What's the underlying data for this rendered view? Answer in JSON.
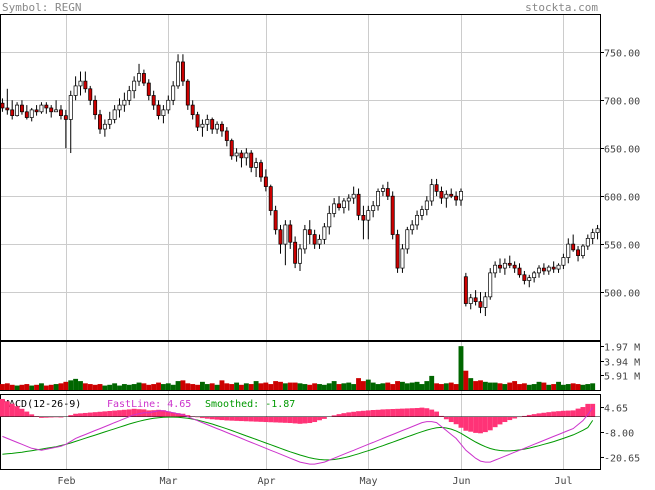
{
  "header": {
    "symbol_label": "Symbol: REGN",
    "site_label": "stockta.com"
  },
  "macd": {
    "title": "MACD(12-26-9)",
    "fast_label": "FastLine: 4.65",
    "smoothed_label": "Smoothed: -1.87",
    "y_ticks": [
      "4.65",
      "-8.00",
      "-20.65"
    ]
  },
  "volume": {
    "y_ticks": [
      "5.91 M",
      "3.94 M",
      "1.97 M"
    ]
  },
  "colors": {
    "up": "#ffffff",
    "down": "#cc0000",
    "volume_up": "#006600",
    "volume_down": "#cc0000",
    "histogram": "#ff3377",
    "fast_line": "#cc33cc",
    "smoothed_line": "#009900",
    "grid": "#cccccc",
    "header_text": "#888888"
  },
  "chart_data": [
    {
      "type": "candlestick",
      "title": "",
      "xlabel": "",
      "ylabel": "",
      "ylim": [
        450,
        790
      ],
      "y_ticks": [
        500,
        550,
        600,
        650,
        700,
        750
      ],
      "x_ticks": [
        "Feb",
        "Mar",
        "Apr",
        "May",
        "Jun",
        "Jul"
      ],
      "grid": true,
      "ohlc": [
        [
          697,
          702,
          688,
          692
        ],
        [
          692,
          712,
          685,
          690
        ],
        [
          690,
          700,
          680,
          684
        ],
        [
          684,
          698,
          683,
          695
        ],
        [
          695,
          700,
          685,
          688
        ],
        [
          688,
          695,
          680,
          682
        ],
        [
          682,
          692,
          678,
          690
        ],
        [
          690,
          695,
          684,
          688
        ],
        [
          688,
          698,
          686,
          695
        ],
        [
          695,
          698,
          686,
          692
        ],
        [
          692,
          695,
          682,
          688
        ],
        [
          688,
          700,
          688,
          690
        ],
        [
          690,
          695,
          680,
          684
        ],
        [
          684,
          690,
          650,
          680
        ],
        [
          680,
          710,
          645,
          705
        ],
        [
          705,
          725,
          700,
          715
        ],
        [
          715,
          730,
          705,
          720
        ],
        [
          720,
          730,
          708,
          712
        ],
        [
          712,
          715,
          695,
          700
        ],
        [
          700,
          705,
          680,
          685
        ],
        [
          685,
          690,
          665,
          670
        ],
        [
          670,
          680,
          662,
          675
        ],
        [
          675,
          688,
          670,
          680
        ],
        [
          680,
          695,
          676,
          690
        ],
        [
          690,
          702,
          682,
          695
        ],
        [
          695,
          708,
          688,
          700
        ],
        [
          700,
          715,
          695,
          710
        ],
        [
          710,
          725,
          702,
          720
        ],
        [
          720,
          738,
          715,
          728
        ],
        [
          728,
          732,
          715,
          718
        ],
        [
          718,
          722,
          700,
          705
        ],
        [
          705,
          710,
          690,
          695
        ],
        [
          695,
          700,
          680,
          684
        ],
        [
          684,
          695,
          676,
          690
        ],
        [
          690,
          705,
          686,
          700
        ],
        [
          700,
          720,
          695,
          715
        ],
        [
          715,
          748,
          712,
          740
        ],
        [
          740,
          748,
          715,
          720
        ],
        [
          720,
          722,
          690,
          695
        ],
        [
          695,
          700,
          680,
          685
        ],
        [
          685,
          688,
          668,
          672
        ],
        [
          672,
          680,
          662,
          675
        ],
        [
          675,
          685,
          668,
          680
        ],
        [
          680,
          682,
          665,
          670
        ],
        [
          670,
          678,
          665,
          675
        ],
        [
          675,
          678,
          662,
          668
        ],
        [
          668,
          672,
          652,
          658
        ],
        [
          658,
          660,
          638,
          642
        ],
        [
          642,
          650,
          636,
          645
        ],
        [
          645,
          648,
          630,
          640
        ],
        [
          640,
          650,
          632,
          645
        ],
        [
          645,
          648,
          625,
          630
        ],
        [
          630,
          640,
          620,
          635
        ],
        [
          635,
          638,
          615,
          620
        ],
        [
          620,
          628,
          605,
          610
        ],
        [
          610,
          612,
          580,
          585
        ],
        [
          585,
          590,
          560,
          565
        ],
        [
          565,
          570,
          540,
          550
        ],
        [
          550,
          575,
          528,
          570
        ],
        [
          570,
          575,
          545,
          552
        ],
        [
          552,
          558,
          525,
          530
        ],
        [
          530,
          550,
          522,
          545
        ],
        [
          545,
          570,
          540,
          565
        ],
        [
          565,
          575,
          550,
          560
        ],
        [
          560,
          565,
          545,
          550
        ],
        [
          550,
          560,
          545,
          555
        ],
        [
          555,
          572,
          550,
          568
        ],
        [
          568,
          590,
          560,
          582
        ],
        [
          582,
          598,
          578,
          592
        ],
        [
          592,
          600,
          585,
          588
        ],
        [
          588,
          598,
          582,
          595
        ],
        [
          595,
          602,
          585,
          598
        ],
        [
          598,
          610,
          592,
          602
        ],
        [
          602,
          608,
          575,
          580
        ],
        [
          580,
          590,
          555,
          575
        ],
        [
          575,
          590,
          555,
          585
        ],
        [
          585,
          595,
          578,
          590
        ],
        [
          590,
          608,
          585,
          605
        ],
        [
          605,
          612,
          600,
          608
        ],
        [
          608,
          615,
          596,
          600
        ],
        [
          600,
          605,
          555,
          560
        ],
        [
          560,
          565,
          520,
          525
        ],
        [
          525,
          550,
          520,
          545
        ],
        [
          545,
          568,
          540,
          565
        ],
        [
          565,
          575,
          560,
          570
        ],
        [
          570,
          585,
          565,
          580
        ],
        [
          580,
          590,
          575,
          586
        ],
        [
          586,
          600,
          580,
          595
        ],
        [
          595,
          618,
          590,
          612
        ],
        [
          612,
          618,
          600,
          605
        ],
        [
          605,
          610,
          592,
          598
        ],
        [
          598,
          606,
          588,
          602
        ],
        [
          602,
          608,
          598,
          600
        ],
        [
          600,
          605,
          590,
          596
        ],
        [
          596,
          608,
          590,
          605
        ],
        [
          516,
          520,
          485,
          488
        ],
        [
          488,
          498,
          482,
          494
        ],
        [
          494,
          502,
          486,
          490
        ],
        [
          490,
          500,
          478,
          484
        ],
        [
          484,
          500,
          475,
          495
        ],
        [
          495,
          525,
          492,
          520
        ],
        [
          520,
          532,
          515,
          528
        ],
        [
          528,
          535,
          520,
          525
        ],
        [
          525,
          535,
          518,
          530
        ],
        [
          530,
          538,
          525,
          528
        ],
        [
          528,
          532,
          520,
          525
        ],
        [
          525,
          530,
          515,
          518
        ],
        [
          518,
          522,
          508,
          512
        ],
        [
          512,
          518,
          505,
          515
        ],
        [
          515,
          522,
          510,
          520
        ],
        [
          520,
          528,
          515,
          525
        ],
        [
          525,
          530,
          518,
          522
        ],
        [
          522,
          528,
          518,
          526
        ],
        [
          526,
          532,
          520,
          524
        ],
        [
          524,
          530,
          520,
          528
        ],
        [
          528,
          540,
          524,
          536
        ],
        [
          536,
          556,
          530,
          550
        ],
        [
          550,
          560,
          542,
          544
        ],
        [
          544,
          548,
          532,
          538
        ],
        [
          538,
          550,
          535,
          548
        ],
        [
          548,
          560,
          544,
          556
        ],
        [
          556,
          566,
          550,
          562
        ],
        [
          562,
          570,
          555,
          566
        ]
      ]
    },
    {
      "type": "bar",
      "title": "",
      "xlabel": "",
      "ylabel": "Volume",
      "ylim": [
        0,
        6.2
      ],
      "y_ticks": [
        1.97,
        3.94,
        5.91
      ],
      "values": [
        0.8,
        0.9,
        0.7,
        0.6,
        0.7,
        0.8,
        0.6,
        0.7,
        0.9,
        0.6,
        0.7,
        0.8,
        0.9,
        1.1,
        1.3,
        1.5,
        1.2,
        0.9,
        0.8,
        0.7,
        0.8,
        0.6,
        0.7,
        0.9,
        0.6,
        0.8,
        0.7,
        0.8,
        1.0,
        0.9,
        0.7,
        0.8,
        1.0,
        0.8,
        0.9,
        0.7,
        1.2,
        1.3,
        0.9,
        0.8,
        0.7,
        1.1,
        0.8,
        0.9,
        0.7,
        1.3,
        0.9,
        0.8,
        1.0,
        0.7,
        0.9,
        0.8,
        1.2,
        0.9,
        1.0,
        0.8,
        1.2,
        1.1,
        0.9,
        1.0,
        1.0,
        0.9,
        0.8,
        0.7,
        0.9,
        0.8,
        0.7,
        0.9,
        1.2,
        0.8,
        0.9,
        1.0,
        0.8,
        1.6,
        1.2,
        1.4,
        1.0,
        0.8,
        0.9,
        1.0,
        0.8,
        1.2,
        1.1,
        0.9,
        1.0,
        1.1,
        0.8,
        1.2,
        1.9,
        0.9,
        0.8,
        0.9,
        1.0,
        0.8,
        5.91,
        2.6,
        1.6,
        1.2,
        1.3,
        1.1,
        1.0,
        1.0,
        0.9,
        0.8,
        1.0,
        1.2,
        0.8,
        0.9,
        0.7,
        0.8,
        1.1,
        1.0,
        0.7,
        0.8,
        1.1,
        0.7,
        0.8,
        0.9,
        0.8,
        0.7,
        0.8,
        0.9
      ]
    },
    {
      "type": "line",
      "title": "",
      "xlabel": "",
      "ylabel": "MACD",
      "ylim": [
        -27,
        11
      ],
      "series": [
        {
          "name": "FastLine",
          "values": [
            -10,
            -11,
            -12,
            -13,
            -14,
            -15,
            -16,
            -16.5,
            -17,
            -16.5,
            -16,
            -15.5,
            -15,
            -14,
            -12.5,
            -11,
            -10,
            -9,
            -8,
            -7,
            -6,
            -5,
            -4,
            -3,
            -2,
            -1,
            0,
            1,
            1.5,
            2,
            2,
            2.5,
            3,
            3,
            2.5,
            2,
            1.5,
            1,
            0,
            -1,
            -2,
            -3,
            -4,
            -5,
            -6,
            -7,
            -8,
            -9,
            -10,
            -11,
            -12,
            -13,
            -14,
            -15,
            -16,
            -17,
            -18,
            -19,
            -20,
            -21,
            -22,
            -23,
            -23.5,
            -24,
            -24,
            -23.5,
            -23,
            -22,
            -21,
            -20,
            -19,
            -18,
            -17,
            -16,
            -15,
            -14,
            -13,
            -12,
            -11,
            -10,
            -9,
            -8,
            -7,
            -6,
            -5,
            -4,
            -3,
            -2.5,
            -2.5,
            -3,
            -5,
            -7,
            -9,
            -11,
            -14,
            -17,
            -19,
            -21,
            -22.5,
            -23,
            -23,
            -22,
            -21,
            -20,
            -19,
            -18,
            -17,
            -16,
            -15,
            -14,
            -13,
            -12,
            -11,
            -10,
            -9,
            -8,
            -7,
            -6,
            -4,
            -2,
            1,
            4.65
          ]
        },
        {
          "name": "Smoothed",
          "values": [
            -19,
            -18.8,
            -18.6,
            -18.3,
            -18,
            -17.6,
            -17.2,
            -16.8,
            -16.4,
            -16,
            -15.6,
            -15.2,
            -14.6,
            -14,
            -13.3,
            -12.5,
            -11.7,
            -10.9,
            -10.1,
            -9.3,
            -8.5,
            -7.7,
            -6.9,
            -6.1,
            -5.3,
            -4.5,
            -3.7,
            -3,
            -2.3,
            -1.7,
            -1.2,
            -0.8,
            -0.5,
            -0.3,
            -0.2,
            -0.2,
            -0.3,
            -0.5,
            -0.8,
            -1.2,
            -1.7,
            -2.3,
            -3,
            -3.7,
            -4.5,
            -5.3,
            -6.1,
            -7,
            -7.9,
            -8.8,
            -9.7,
            -10.6,
            -11.5,
            -12.4,
            -13.3,
            -14.2,
            -15.1,
            -16,
            -16.9,
            -17.8,
            -18.6,
            -19.4,
            -20.1,
            -20.8,
            -21.3,
            -21.7,
            -21.9,
            -21.9,
            -21.7,
            -21.3,
            -20.8,
            -20.2,
            -19.5,
            -18.8,
            -18,
            -17.2,
            -16.4,
            -15.5,
            -14.7,
            -13.8,
            -12.9,
            -12,
            -11.1,
            -10.2,
            -9.3,
            -8.4,
            -7.6,
            -6.8,
            -6.1,
            -5.6,
            -5.4,
            -5.7,
            -6.3,
            -7.2,
            -8.4,
            -9.9,
            -11.4,
            -12.8,
            -14.1,
            -15.2,
            -16.1,
            -16.7,
            -17.1,
            -17.3,
            -17.3,
            -17.1,
            -16.8,
            -16.4,
            -15.9,
            -15.3,
            -14.7,
            -14,
            -13.3,
            -12.6,
            -11.8,
            -11,
            -10.1,
            -9.2,
            -8.1,
            -6.9,
            -5.5,
            -1.87
          ]
        }
      ]
    }
  ]
}
